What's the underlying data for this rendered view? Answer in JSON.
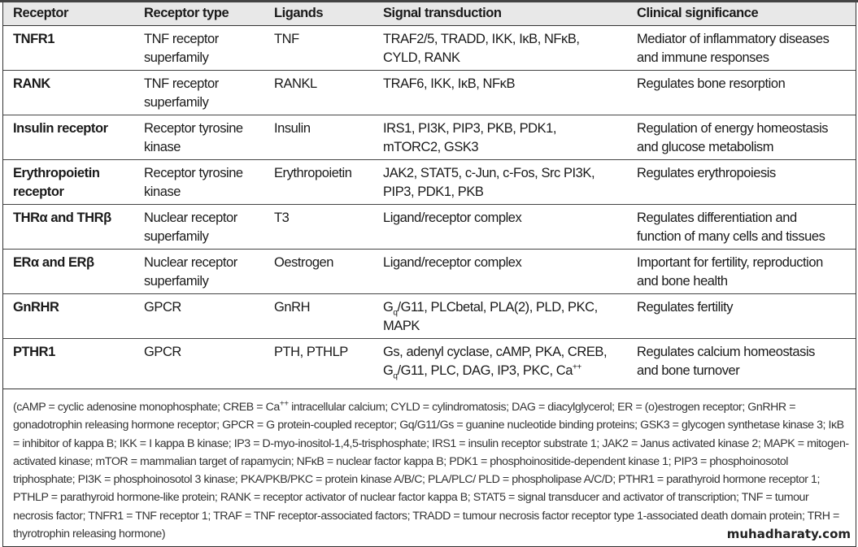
{
  "table": {
    "headers": [
      "Receptor",
      "Receptor type",
      "Ligands",
      "Signal transduction",
      "Clinical significance"
    ],
    "rows": [
      {
        "receptor": [
          "TNFR1"
        ],
        "type": [
          "TNF receptor",
          "superfamily"
        ],
        "ligands": [
          "TNF"
        ],
        "signal": [
          "TRAF2/5, TRADD, IKK, IκB, NFκB,",
          "CYLD, RANK"
        ],
        "clinical": [
          "Mediator of inflammatory diseases",
          "and immune responses"
        ]
      },
      {
        "receptor": [
          "RANK"
        ],
        "type": [
          "TNF receptor",
          "superfamily"
        ],
        "ligands": [
          "RANKL"
        ],
        "signal": [
          "TRAF6, IKK, IκB, NFκB"
        ],
        "clinical": [
          "Regulates bone resorption"
        ]
      },
      {
        "receptor": [
          "Insulin receptor"
        ],
        "type": [
          "Receptor tyrosine",
          "kinase"
        ],
        "ligands": [
          "Insulin"
        ],
        "signal": [
          "IRS1, PI3K, PIP3, PKB, PDK1,",
          "mTORC2, GSK3"
        ],
        "clinical": [
          "Regulation of energy homeostasis",
          "and glucose metabolism"
        ]
      },
      {
        "receptor": [
          "Erythropoietin",
          "receptor"
        ],
        "type": [
          "Receptor tyrosine",
          "kinase"
        ],
        "ligands": [
          "Erythropoietin"
        ],
        "signal": [
          "JAK2, STAT5, c-Jun, c-Fos, Src PI3K,",
          "PIP3, PDK1, PKB"
        ],
        "clinical": [
          "Regulates erythropoiesis"
        ]
      },
      {
        "receptor": [
          "THRα and THRβ"
        ],
        "type": [
          "Nuclear receptor",
          "superfamily"
        ],
        "ligands": [
          "T3"
        ],
        "signal": [
          "Ligand/receptor complex"
        ],
        "clinical": [
          "Regulates differentiation and",
          "function of many cells and tissues"
        ]
      },
      {
        "receptor": [
          "ERα and ERβ"
        ],
        "type": [
          "Nuclear receptor",
          "superfamily"
        ],
        "ligands": [
          "Oestrogen"
        ],
        "signal": [
          "Ligand/receptor complex"
        ],
        "clinical": [
          "Important for fertility, reproduction",
          "and bone health"
        ]
      },
      {
        "receptor": [
          "GnRHR"
        ],
        "type": [
          "GPCR"
        ],
        "ligands": [
          "GnRH"
        ],
        "signal": [
          "G_q/G11, PLCbetal, PLA(2), PLD, PKC,",
          "MAPK"
        ],
        "clinical": [
          "Regulates fertility"
        ]
      },
      {
        "receptor": [
          "PTHR1"
        ],
        "type": [
          "GPCR"
        ],
        "ligands": [
          "PTH, PTHLP"
        ],
        "signal": [
          "Gs, adenyl cyclase, cAMP, PKA, CREB,",
          "G_q/G11, PLC, DAG, IP3, PKC, Ca^++"
        ],
        "clinical": [
          "Regulates calcium homeostasis",
          "and bone turnover"
        ]
      }
    ]
  },
  "footnote": "(cAMP = cyclic adenosine monophosphate; CREB = Ca^++ intracellular calcium; CYLD = cylindromatosis; DAG = diacylglycerol; ER = (o)estrogen receptor; GnRHR = gonadotrophin releasing hormone receptor; GPCR = G protein-coupled receptor; Gq/G11/Gs = guanine nucleotide binding proteins; GSK3 = glycogen synthetase kinase 3; IκB = inhibitor of kappa B; IKK = I kappa B kinase; IP3 = D-myo-inositol-1,4,5-trisphosphate; IRS1 = insulin receptor substrate 1; JAK2 = Janus activated kinase 2; MAPK = mitogen-activated kinase; mTOR = mammalian target of rapamycin; NFκB = nuclear factor kappa B; PDK1 = phosphoinositide-dependent kinase 1; PIP3 = phosphoinosotol triphosphate; PI3K = phosphoinosotol 3 kinase; PKA/PKB/PKC = protein kinase A/B/C; PLA/PLC/ PLD = phospholipase A/C/D; PTHR1 = parathyroid hormone receptor 1; PTHLP = parathyroid hormone-like protein; RANK = receptor activator of nuclear factor kappa B; STAT5 = signal transducer and activator of transcription; TNF = tumour necrosis factor; TNFR1 = TNF receptor 1; TRAF = TNF receptor-associated factors; TRADD = tumour necrosis factor receptor type 1-associated death domain protein; TRH = thyrotrophin releasing hormone)",
  "watermark": "muhadharaty.com"
}
